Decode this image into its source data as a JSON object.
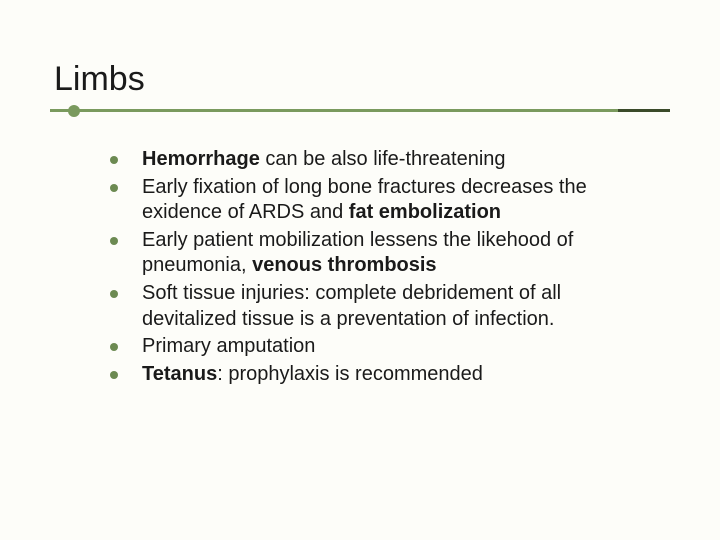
{
  "slide": {
    "title": "Limbs",
    "title_fontsize": 34,
    "background_color": "#fdfdf9",
    "text_color": "#1a1a1a",
    "accent_color": "#7a9a5e",
    "accent_dark": "#3a4a2a",
    "bullet_color": "#6c8a52",
    "body_fontsize": 20,
    "bullets": [
      {
        "runs": [
          {
            "text": "Hemorrhage",
            "bold": true
          },
          {
            "text": " can be also life-threatening",
            "bold": false
          }
        ]
      },
      {
        "runs": [
          {
            "text": "Early fixation of long bone fractures decreases the exidence of ARDS and ",
            "bold": false
          },
          {
            "text": "fat embolization",
            "bold": true
          }
        ]
      },
      {
        "runs": [
          {
            "text": "Early patient mobilization lessens  the likehood of pneumonia, ",
            "bold": false
          },
          {
            "text": "venous thrombosis",
            "bold": true
          }
        ]
      },
      {
        "runs": [
          {
            "text": "Soft tissue injuries: complete debridement of all devitalized tissue is a preventation of infection.",
            "bold": false
          }
        ]
      },
      {
        "runs": [
          {
            "text": "Primary amputation",
            "bold": false
          }
        ]
      },
      {
        "runs": [
          {
            "text": "Tetanus",
            "bold": true
          },
          {
            "text": ": prophylaxis is recommended",
            "bold": false
          }
        ]
      }
    ]
  }
}
